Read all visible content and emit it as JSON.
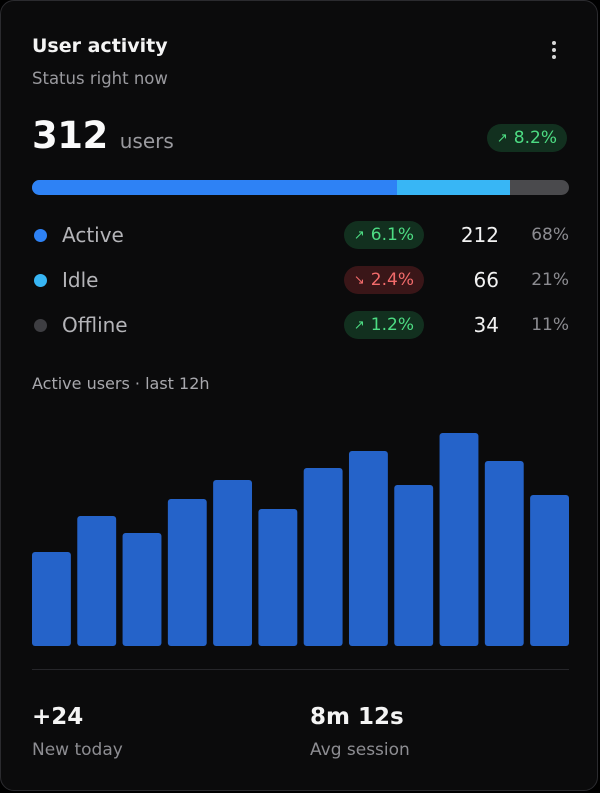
{
  "card": {
    "title": "User activity",
    "subtitle": "Status right now",
    "menu_icon": "more-vertical-icon"
  },
  "summary": {
    "total": "312",
    "unit": "users",
    "change": "8.2%",
    "change_direction": "up"
  },
  "distribution": {
    "colors": {
      "active": "#2e82f5",
      "idle": "#38b6f5",
      "offline": "#4a4a4d"
    },
    "segments": [
      {
        "key": "active",
        "fraction": 0.68
      },
      {
        "key": "idle",
        "fraction": 0.21
      },
      {
        "key": "offline",
        "fraction": 0.11
      }
    ]
  },
  "statuses": [
    {
      "label": "Active",
      "change": "6.1%",
      "direction": "up",
      "count": "212",
      "percent": "68%",
      "color": "#2e82f5"
    },
    {
      "label": "Idle",
      "change": "2.4%",
      "direction": "down",
      "count": "66",
      "percent": "21%",
      "color": "#38b6f5"
    },
    {
      "label": "Offline",
      "change": "1.2%",
      "direction": "up",
      "count": "34",
      "percent": "11%",
      "color": "#3e3e42"
    }
  ],
  "chart_data": {
    "type": "bar",
    "title": "Active users · last 12h",
    "values": [
      94,
      130,
      113,
      147,
      166,
      137,
      178,
      195,
      161,
      213,
      185,
      151
    ],
    "ylim": [
      0,
      230
    ],
    "color": "#2563c9",
    "grid": false
  },
  "footer": {
    "new_today_value": "+24",
    "new_today_label": "New today",
    "avg_session_value": "8m 12s",
    "avg_session_label": "Avg session"
  }
}
